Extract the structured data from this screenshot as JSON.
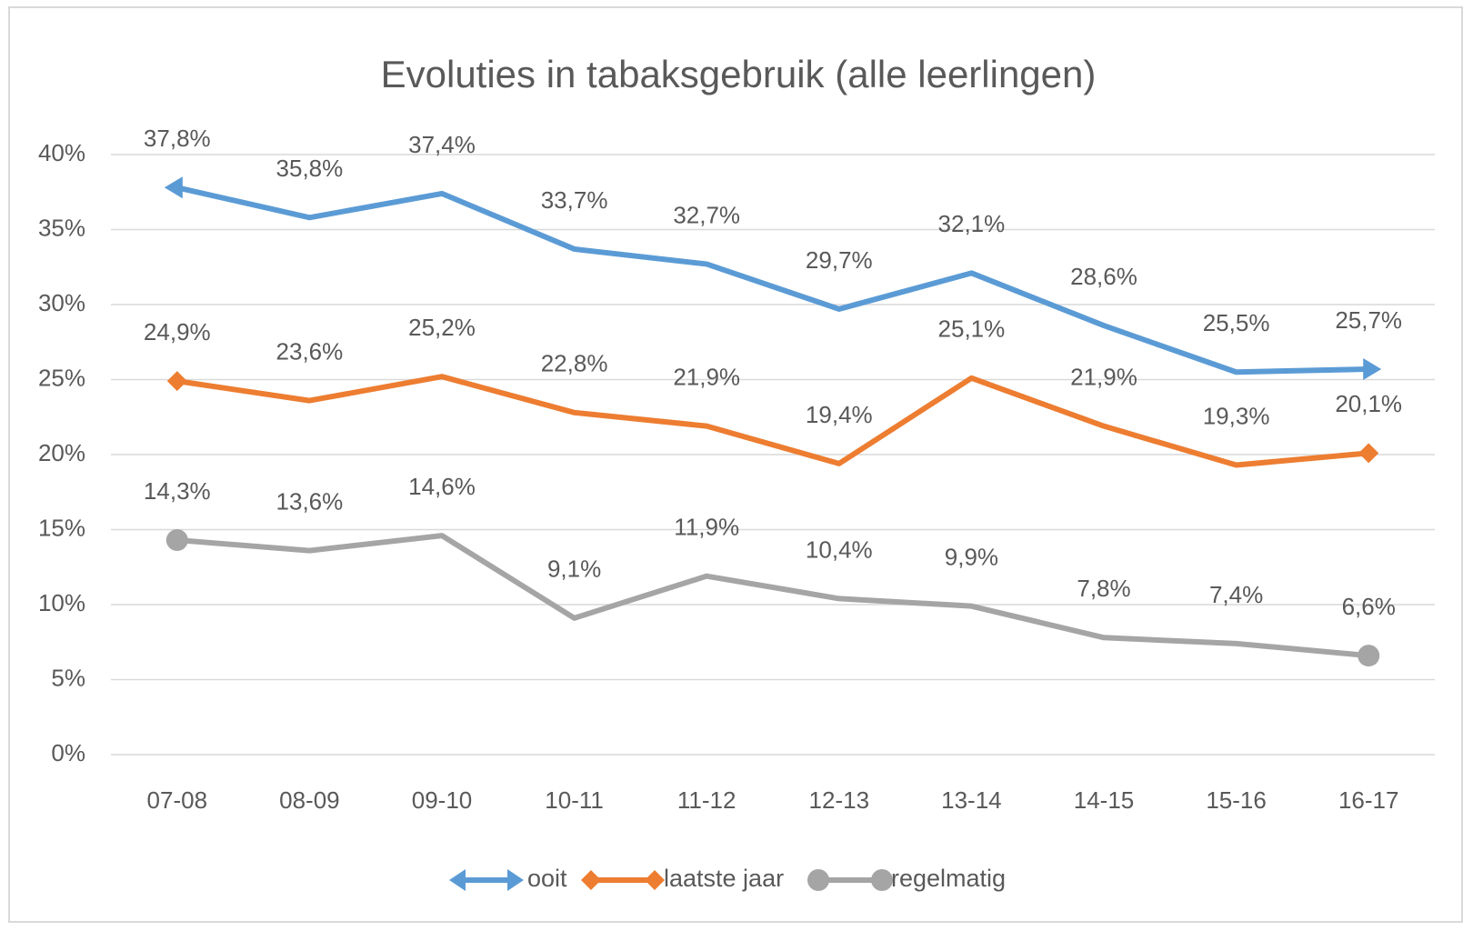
{
  "chart_data": {
    "type": "line",
    "title": "Evoluties in tabaksgebruik (alle leerlingen)",
    "categories": [
      "07-08",
      "08-09",
      "09-10",
      "10-11",
      "11-12",
      "12-13",
      "13-14",
      "14-15",
      "15-16",
      "16-17"
    ],
    "series": [
      {
        "name": "ooit",
        "color": "#5b9bd5",
        "marker": "arrow",
        "values": [
          37.8,
          35.8,
          37.4,
          33.7,
          32.7,
          29.7,
          32.1,
          28.6,
          25.5,
          25.7
        ],
        "value_labels": [
          "37,8%",
          "35,8%",
          "37,4%",
          "33,7%",
          "32,7%",
          "29,7%",
          "32,1%",
          "28,6%",
          "25,5%",
          "25,7%"
        ]
      },
      {
        "name": "laatste jaar",
        "color": "#ed7d31",
        "marker": "diamond",
        "values": [
          24.9,
          23.6,
          25.2,
          22.8,
          21.9,
          19.4,
          25.1,
          21.9,
          19.3,
          20.1
        ],
        "value_labels": [
          "24,9%",
          "23,6%",
          "25,2%",
          "22,8%",
          "21,9%",
          "19,4%",
          "25,1%",
          "21,9%",
          "19,3%",
          "20,1%"
        ]
      },
      {
        "name": "regelmatig",
        "color": "#a5a5a5",
        "marker": "circle",
        "values": [
          14.3,
          13.6,
          14.6,
          9.1,
          11.9,
          10.4,
          9.9,
          7.8,
          7.4,
          6.6
        ],
        "value_labels": [
          "14,3%",
          "13,6%",
          "14,6%",
          "9,1%",
          "11,9%",
          "10,4%",
          "9,9%",
          "7,8%",
          "7,4%",
          "6,6%"
        ]
      }
    ],
    "ylim": [
      0,
      40
    ],
    "yticks": [
      {
        "value": 0,
        "label": "0%"
      },
      {
        "value": 5,
        "label": "5%"
      },
      {
        "value": 10,
        "label": "10%"
      },
      {
        "value": 15,
        "label": "15%"
      },
      {
        "value": 20,
        "label": "20%"
      },
      {
        "value": 25,
        "label": "25%"
      },
      {
        "value": 30,
        "label": "30%"
      },
      {
        "value": 35,
        "label": "35%"
      },
      {
        "value": 40,
        "label": "40%"
      }
    ],
    "grid": true,
    "legend": "bottom"
  }
}
